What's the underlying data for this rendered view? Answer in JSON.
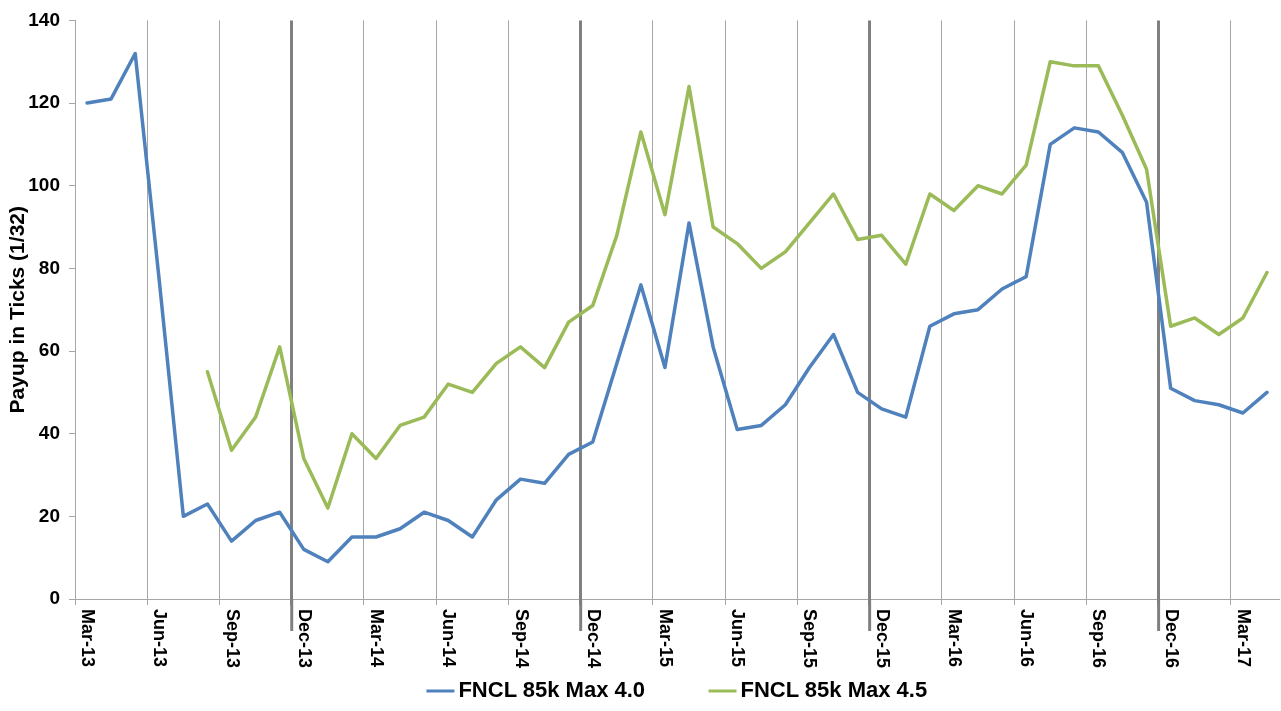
{
  "chart_data": {
    "type": "line",
    "ylabel": "Payup in Ticks (1/32)",
    "categories": [
      "Mar-13",
      null,
      null,
      "Jun-13",
      null,
      null,
      "Sep-13",
      null,
      null,
      "Dec-13",
      null,
      null,
      "Mar-14",
      null,
      null,
      "Jun-14",
      null,
      null,
      "Sep-14",
      null,
      null,
      "Dec-14",
      null,
      null,
      "Mar-15",
      null,
      null,
      "Jun-15",
      null,
      null,
      "Sep-15",
      null,
      null,
      "Dec-15",
      null,
      null,
      "Mar-16",
      null,
      null,
      "Jun-16",
      null,
      null,
      "Sep-16",
      null,
      null,
      "Dec-16",
      null,
      null,
      "Mar-17",
      null
    ],
    "series": [
      {
        "name": "FNCL 85k Max 4.0",
        "color": "#4f81bd",
        "values": [
          120,
          121,
          132,
          77,
          20,
          23,
          14,
          19,
          21,
          12,
          9,
          15,
          15,
          17,
          21,
          19,
          15,
          24,
          29,
          28,
          35,
          38,
          57,
          76,
          56,
          91,
          61,
          41,
          42,
          47,
          56,
          64,
          50,
          46,
          44,
          66,
          69,
          70,
          75,
          78,
          110,
          114,
          113,
          108,
          96,
          51,
          48,
          47,
          45,
          50
        ]
      },
      {
        "name": "FNCL 85k Max 4.5",
        "color": "#9bbb59",
        "values": [
          null,
          null,
          null,
          null,
          null,
          55,
          36,
          44,
          61,
          34,
          22,
          40,
          34,
          42,
          44,
          52,
          50,
          57,
          61,
          56,
          67,
          71,
          88,
          113,
          93,
          124,
          90,
          86,
          80,
          84,
          91,
          98,
          87,
          88,
          81,
          98,
          94,
          100,
          98,
          105,
          130,
          129,
          129,
          117,
          104,
          66,
          68,
          64,
          68,
          79
        ]
      }
    ],
    "ylim": [
      0,
      140
    ],
    "yticks": [
      0,
      20,
      40,
      60,
      80,
      100,
      120,
      140
    ],
    "grid": "x",
    "legend": "bottom",
    "marker": "none"
  }
}
